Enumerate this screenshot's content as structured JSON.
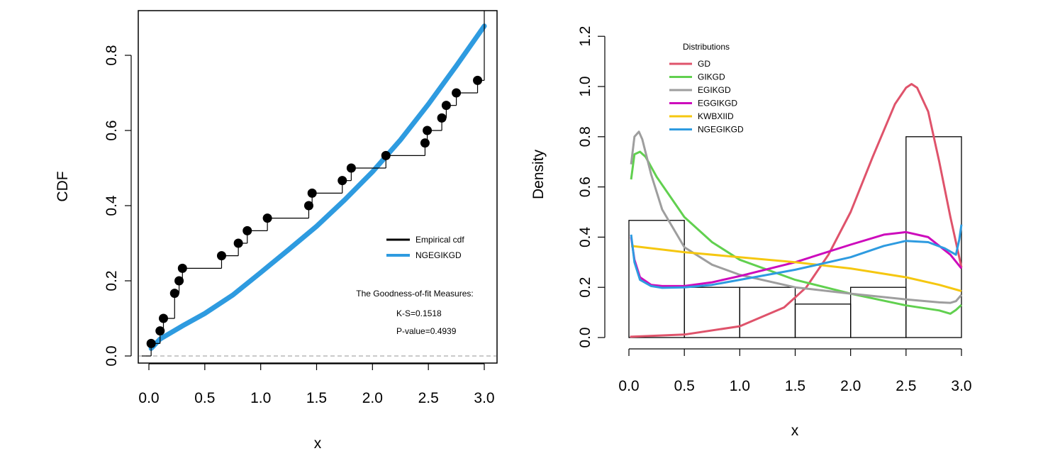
{
  "chart_data": [
    {
      "type": "step",
      "xlabel": "x",
      "ylabel": "CDF",
      "xlim": [
        -0.1,
        3.1
      ],
      "ylim": [
        -0.02,
        0.9
      ],
      "x_ticks": [
        "0.0",
        "0.5",
        "1.0",
        "1.5",
        "2.0",
        "2.5",
        "3.0"
      ],
      "y_ticks": [
        "0.0",
        "0.2",
        "0.4",
        "0.6",
        "0.8"
      ],
      "empirical_cdf": {
        "x": [
          0.02,
          0.1,
          0.13,
          0.23,
          0.27,
          0.3,
          0.65,
          0.8,
          0.88,
          1.06,
          1.43,
          1.46,
          1.73,
          1.81,
          2.12,
          2.47,
          2.49,
          2.62,
          2.66,
          2.75,
          2.94
        ],
        "y": [
          0.0333,
          0.0667,
          0.1,
          0.1667,
          0.2,
          0.2333,
          0.2667,
          0.3,
          0.3333,
          0.3667,
          0.4,
          0.4333,
          0.4667,
          0.5,
          0.5333,
          0.5667,
          0.6,
          0.6333,
          0.6667,
          0.7,
          0.7333
        ],
        "x_end": 3.0,
        "y_end": 1.0
      },
      "fitted_cdf": {
        "x": [
          0.02,
          0.1,
          0.3,
          0.5,
          0.75,
          1.0,
          1.25,
          1.5,
          1.75,
          2.0,
          2.25,
          2.5,
          2.75,
          3.0
        ],
        "y": [
          0.02,
          0.045,
          0.08,
          0.113,
          0.162,
          0.222,
          0.283,
          0.345,
          0.415,
          0.49,
          0.575,
          0.67,
          0.772,
          0.878
        ]
      },
      "hline_y": 0,
      "legend": [
        "Empirical cdf",
        "NGEGIKGD"
      ],
      "legend_colors": [
        "#000000",
        "#2E9BE0"
      ],
      "annotation": {
        "title": "The Goodness-of-fit Measures:",
        "ks": "K-S=0.1518",
        "pvalue": "P-value=0.4939"
      }
    },
    {
      "type": "histogram+line",
      "xlabel": "x",
      "ylabel": "Density",
      "xlim": [
        -0.1,
        3.1
      ],
      "ylim": [
        0,
        1.25
      ],
      "x_ticks": [
        "0.0",
        "0.5",
        "1.0",
        "1.5",
        "2.0",
        "2.5",
        "3.0"
      ],
      "y_ticks": [
        "0.0",
        "0.2",
        "0.4",
        "0.6",
        "0.8",
        "1.0",
        "1.2"
      ],
      "histogram": {
        "breaks": [
          0,
          0.5,
          1.0,
          1.5,
          2.0,
          2.5,
          3.0
        ],
        "density": [
          0.4667,
          0.2,
          0.2,
          0.1333,
          0.2,
          0.8
        ]
      },
      "legend_title": "Distributions",
      "series": [
        {
          "name": "GD",
          "color": "#DF536B",
          "x": [
            0.01,
            0.5,
            1.0,
            1.4,
            1.6,
            1.8,
            2.0,
            2.2,
            2.4,
            2.5,
            2.55,
            2.6,
            2.7,
            2.8,
            2.9,
            3.0
          ],
          "y": [
            0.003,
            0.012,
            0.045,
            0.12,
            0.2,
            0.33,
            0.5,
            0.72,
            0.93,
            0.995,
            1.01,
            0.995,
            0.9,
            0.7,
            0.48,
            0.28
          ]
        },
        {
          "name": "GIKGD",
          "color": "#61D04F",
          "x": [
            0.02,
            0.05,
            0.1,
            0.15,
            0.25,
            0.5,
            0.75,
            1.0,
            1.5,
            2.0,
            2.5,
            2.8,
            2.9,
            2.95,
            3.0
          ],
          "y": [
            0.63,
            0.73,
            0.74,
            0.72,
            0.64,
            0.48,
            0.38,
            0.31,
            0.23,
            0.175,
            0.128,
            0.108,
            0.095,
            0.11,
            0.13
          ]
        },
        {
          "name": "EGIKGD",
          "color": "#9E9E9E",
          "x": [
            0.02,
            0.05,
            0.09,
            0.12,
            0.2,
            0.3,
            0.5,
            0.75,
            1.0,
            1.5,
            2.0,
            2.5,
            2.8,
            2.9,
            2.95,
            3.0
          ],
          "y": [
            0.69,
            0.8,
            0.82,
            0.79,
            0.65,
            0.51,
            0.36,
            0.29,
            0.25,
            0.2,
            0.175,
            0.152,
            0.14,
            0.138,
            0.145,
            0.17
          ]
        },
        {
          "name": "EGGIKGD",
          "color": "#CD0BBC",
          "x": [
            0.02,
            0.05,
            0.1,
            0.2,
            0.3,
            0.5,
            0.75,
            1.0,
            1.5,
            2.0,
            2.3,
            2.5,
            2.7,
            2.9,
            3.0
          ],
          "y": [
            0.4,
            0.31,
            0.24,
            0.21,
            0.205,
            0.205,
            0.22,
            0.245,
            0.3,
            0.37,
            0.41,
            0.42,
            0.4,
            0.33,
            0.275
          ]
        },
        {
          "name": "KWBXIID",
          "color": "#F5C710",
          "x": [
            0.02,
            0.5,
            1.0,
            1.5,
            2.0,
            2.5,
            2.8,
            3.0
          ],
          "y": [
            0.365,
            0.34,
            0.32,
            0.3,
            0.275,
            0.24,
            0.21,
            0.185
          ]
        },
        {
          "name": "NGEGIKGD",
          "color": "#2E9BE0",
          "x": [
            0.02,
            0.05,
            0.1,
            0.2,
            0.3,
            0.5,
            0.75,
            1.0,
            1.5,
            2.0,
            2.3,
            2.5,
            2.7,
            2.85,
            2.95,
            2.98,
            3.0
          ],
          "y": [
            0.41,
            0.3,
            0.23,
            0.205,
            0.198,
            0.2,
            0.21,
            0.23,
            0.27,
            0.32,
            0.365,
            0.385,
            0.38,
            0.355,
            0.33,
            0.39,
            0.45
          ]
        }
      ]
    }
  ]
}
